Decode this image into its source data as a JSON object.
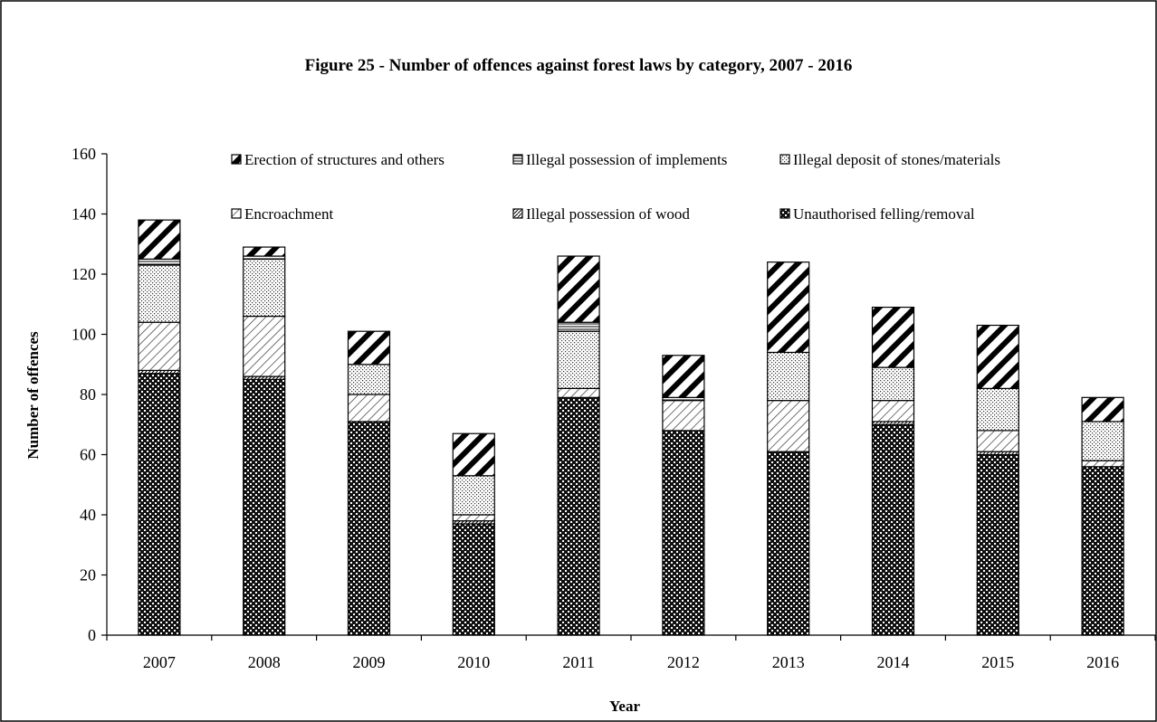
{
  "chart_data": {
    "type": "bar",
    "stacked": true,
    "title": "Figure 25 - Number of offences against forest laws by category, 2007 - 2016",
    "xlabel": "Year",
    "ylabel": "Number of offences",
    "ylim": [
      0,
      160
    ],
    "yticks": [
      0,
      20,
      40,
      60,
      80,
      100,
      120,
      140,
      160
    ],
    "grid": false,
    "legend_position": "top",
    "categories": [
      "2007",
      "2008",
      "2009",
      "2010",
      "2011",
      "2012",
      "2013",
      "2014",
      "2015",
      "2016"
    ],
    "series": [
      {
        "name": "Unauthorised felling/removal",
        "pattern": "checker-dark",
        "values": [
          87,
          85,
          71,
          37,
          79,
          68,
          61,
          70,
          60,
          56
        ]
      },
      {
        "name": "Illegal possession of wood",
        "pattern": "fine-diagonal",
        "values": [
          1,
          1,
          0,
          1,
          0,
          0,
          0,
          1,
          1,
          0
        ]
      },
      {
        "name": "Encroachment",
        "pattern": "diagonal-hatch",
        "values": [
          16,
          20,
          9,
          2,
          3,
          10,
          17,
          7,
          7,
          2
        ]
      },
      {
        "name": "Illegal deposit of stones/materials",
        "pattern": "dotted",
        "values": [
          19,
          19,
          10,
          13,
          19,
          0,
          16,
          11,
          14,
          13
        ]
      },
      {
        "name": "Illegal possession of implements",
        "pattern": "horizontal-lines",
        "values": [
          2,
          1,
          0,
          0,
          3,
          1,
          0,
          0,
          0,
          0
        ]
      },
      {
        "name": "Erection of structures and others",
        "pattern": "wide-diagonal",
        "values": [
          13,
          3,
          11,
          14,
          22,
          14,
          30,
          20,
          21,
          8
        ]
      }
    ],
    "legend_order": [
      "Erection of structures and others",
      "Illegal possession of implements",
      "Illegal deposit of stones/materials",
      "Encroachment",
      "Illegal possession of wood",
      "Unauthorised felling/removal"
    ]
  }
}
